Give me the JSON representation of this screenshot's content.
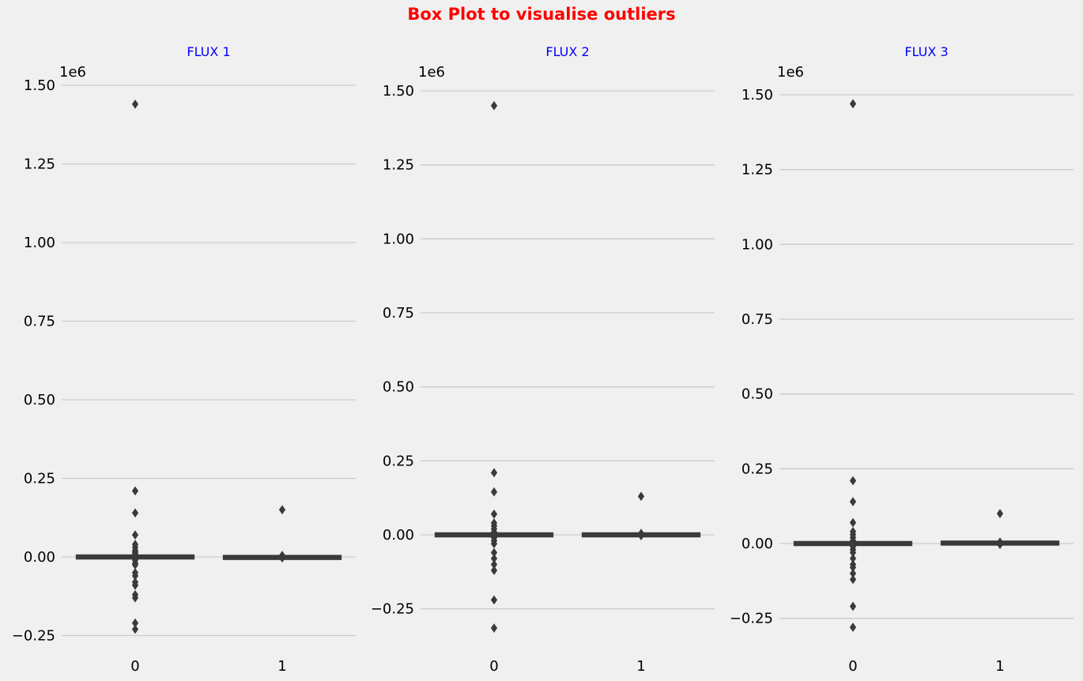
{
  "suptitle": "Box Plot to visualise outliers",
  "colors": {
    "title": "#ff0000",
    "subtitle": "#0000ff",
    "grid": "#cbcbcb",
    "box": "#3a3a3a",
    "background": "#f0f0f0"
  },
  "chart_data": [
    {
      "type": "box",
      "title": "FLUX 1",
      "categories": [
        "0",
        "1"
      ],
      "offset_label": "1e6",
      "yticks": [
        -0.25,
        0.0,
        0.25,
        0.5,
        0.75,
        1.0,
        1.25,
        1.5
      ],
      "ytick_labels": [
        "−0.25",
        "0.00",
        "0.25",
        "0.50",
        "0.75",
        "1.00",
        "1.25",
        "1.50"
      ],
      "ylim": [
        -0.29,
        1.59
      ],
      "grid": "horizontal",
      "boxes": [
        {
          "category": "0",
          "q1": -0.004,
          "median": 0.0,
          "q3": 0.004,
          "outliers": [
            1.44,
            0.21,
            0.14,
            0.07,
            0.04,
            0.03,
            0.02,
            0.015,
            0.01,
            -0.01,
            -0.02,
            -0.025,
            -0.05,
            -0.06,
            -0.08,
            -0.09,
            -0.12,
            -0.13,
            -0.21,
            -0.23
          ]
        },
        {
          "category": "1",
          "q1": -0.006,
          "median": -0.002,
          "q3": 0.003,
          "outliers": [
            0.15,
            0.005,
            -0.003
          ]
        }
      ]
    },
    {
      "type": "box",
      "title": "FLUX 2",
      "categories": [
        "0",
        "1"
      ],
      "offset_label": "1e6",
      "yticks": [
        -0.25,
        0.0,
        0.25,
        0.5,
        0.75,
        1.0,
        1.25,
        1.5
      ],
      "ytick_labels": [
        "−0.25",
        "0.00",
        "0.25",
        "0.50",
        "0.75",
        "1.00",
        "1.25",
        "1.50"
      ],
      "ylim": [
        -0.33,
        1.57
      ],
      "grid": "horizontal",
      "boxes": [
        {
          "category": "0",
          "q1": -0.004,
          "median": 0.0,
          "q3": 0.004,
          "outliers": [
            1.45,
            0.21,
            0.145,
            0.07,
            0.04,
            0.03,
            0.02,
            0.01,
            -0.01,
            -0.02,
            -0.03,
            -0.06,
            -0.08,
            -0.1,
            -0.12,
            -0.22,
            -0.315
          ]
        },
        {
          "category": "1",
          "q1": -0.004,
          "median": 0.0,
          "q3": 0.004,
          "outliers": [
            0.13,
            0.005,
            -0.003
          ]
        }
      ]
    },
    {
      "type": "box",
      "title": "FLUX 3",
      "categories": [
        "0",
        "1"
      ],
      "offset_label": "1e6",
      "yticks": [
        -0.25,
        0.0,
        0.25,
        0.5,
        0.75,
        1.0,
        1.25,
        1.5
      ],
      "ytick_labels": [
        "−0.25",
        "0.00",
        "0.25",
        "0.50",
        "0.75",
        "1.00",
        "1.25",
        "1.50"
      ],
      "ylim": [
        -0.33,
        1.59
      ],
      "grid": "horizontal",
      "boxes": [
        {
          "category": "0",
          "q1": -0.004,
          "median": 0.0,
          "q3": 0.004,
          "outliers": [
            1.47,
            0.21,
            0.14,
            0.07,
            0.04,
            0.03,
            0.02,
            0.01,
            -0.01,
            -0.02,
            -0.03,
            -0.05,
            -0.07,
            -0.08,
            -0.1,
            -0.12,
            -0.21,
            -0.28
          ]
        },
        {
          "category": "1",
          "q1": -0.003,
          "median": 0.001,
          "q3": 0.006,
          "outliers": [
            0.1,
            0.005,
            -0.003
          ]
        }
      ]
    }
  ]
}
